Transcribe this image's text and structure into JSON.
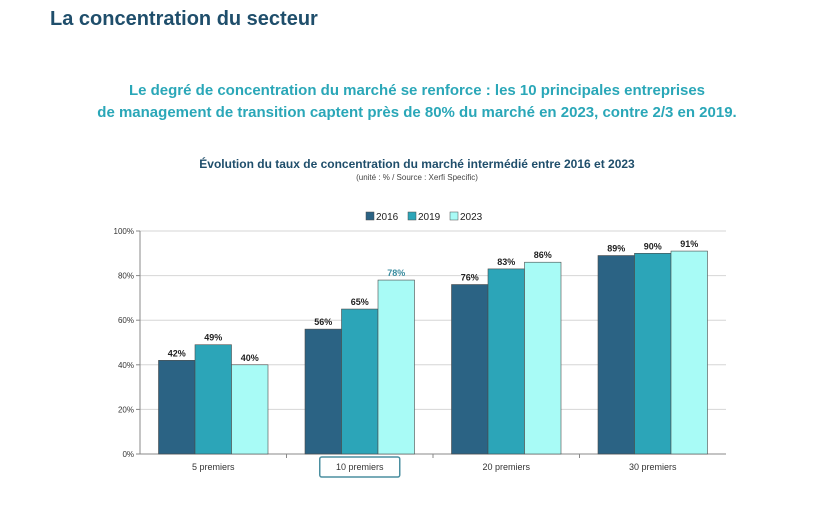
{
  "page": {
    "title": "La concentration du secteur",
    "headline_line1": "Le degré de concentration du marché se renforce : les 10 principales entreprises",
    "headline_line2": "de management de transition captent près de 80% du marché en 2023, contre 2/3 en 2019."
  },
  "chart_data": {
    "type": "bar",
    "title": "Évolution du taux de concentration du marché intermédié entre 2016 et 2023",
    "subtitle": "(unité : % / Source : Xerfi Specific)",
    "categories": [
      "5 premiers",
      "10 premiers",
      "20 premiers",
      "30 premiers"
    ],
    "series": [
      {
        "name": "2016",
        "values": [
          42,
          56,
          76,
          89
        ],
        "labels": [
          "42%",
          "56%",
          "76%",
          "89%"
        ],
        "color": "#2b6384"
      },
      {
        "name": "2019",
        "values": [
          49,
          65,
          83,
          90
        ],
        "labels": [
          "49%",
          "65%",
          "83%",
          "90%"
        ],
        "color": "#2ca5b8"
      },
      {
        "name": "2023",
        "values": [
          40,
          78,
          86,
          91
        ],
        "labels": [
          "40%",
          "78%",
          "86%",
          "91%"
        ],
        "color": "#a8fbf6"
      }
    ],
    "ylim": [
      0,
      100
    ],
    "y_ticks": [
      "0%",
      "20%",
      "40%",
      "60%",
      "80%",
      "100%"
    ],
    "y_tick_values": [
      0,
      20,
      40,
      60,
      80,
      100
    ],
    "grid": true,
    "legend_position": "top",
    "highlighted_category": "10 premiers",
    "highlighted_label": "78%"
  }
}
